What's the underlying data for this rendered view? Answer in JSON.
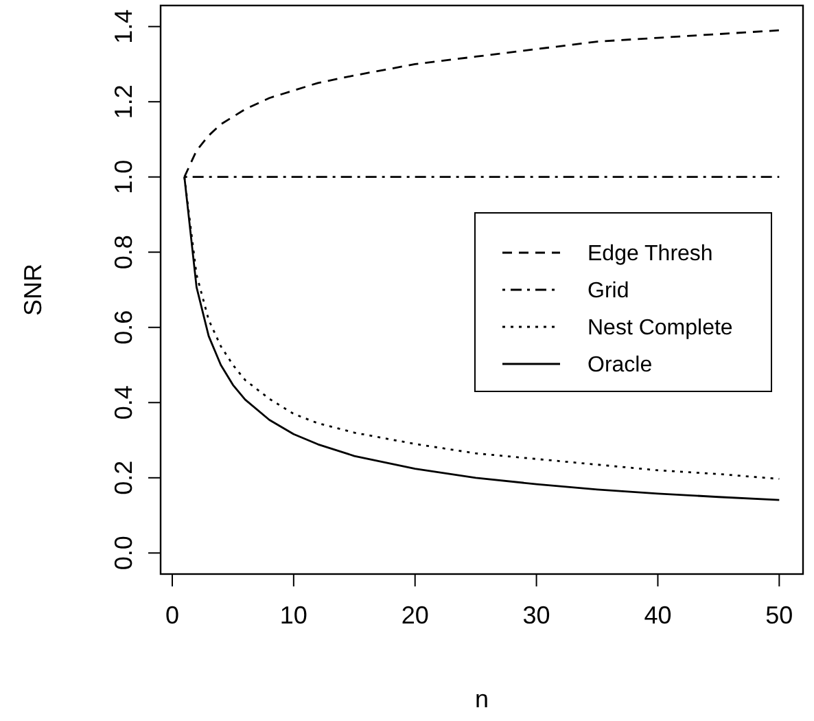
{
  "chart_data": {
    "type": "line",
    "xlabel": "n",
    "ylabel": "SNR",
    "xlim": [
      -0.96,
      51.96
    ],
    "ylim": [
      -0.056,
      1.456
    ],
    "xticks": [
      0,
      10,
      20,
      30,
      40,
      50
    ],
    "yticks": [
      {
        "value": 0,
        "label": "0.0"
      },
      0.2,
      0.4,
      0.6,
      0.8,
      {
        "value": 1,
        "label": "1.0"
      },
      1.2,
      1.4
    ],
    "grid": false,
    "legend": "right",
    "marker": "none",
    "series": [
      {
        "name": "Edge Thresh",
        "color": "#000000",
        "line_style": "dashed",
        "x": [
          1,
          2,
          3,
          4,
          5,
          6,
          8,
          10,
          12,
          15,
          20,
          25,
          30,
          35,
          40,
          45,
          50
        ],
        "values": [
          1,
          1.07,
          1.11,
          1.14,
          1.16,
          1.18,
          1.21,
          1.23,
          1.25,
          1.27,
          1.3,
          1.32,
          1.34,
          1.36,
          1.37,
          1.38,
          1.39
        ]
      },
      {
        "name": "Grid",
        "color": "#000000",
        "line_style": "dashdot",
        "x": [
          1,
          50
        ],
        "values": [
          1,
          1
        ]
      },
      {
        "name": "Nest Complete",
        "color": "#000000",
        "line_style": "dotted",
        "x": [
          1,
          2,
          3,
          4,
          5,
          6,
          8,
          10,
          12,
          15,
          20,
          25,
          30,
          35,
          40,
          45,
          50
        ],
        "values": [
          1,
          0.74,
          0.62,
          0.55,
          0.5,
          0.46,
          0.41,
          0.37,
          0.345,
          0.32,
          0.29,
          0.265,
          0.25,
          0.235,
          0.22,
          0.21,
          0.197
        ]
      },
      {
        "name": "Oracle",
        "color": "#000000",
        "line_style": "solid",
        "x": [
          1,
          2,
          3,
          4,
          5,
          6,
          8,
          10,
          12,
          15,
          20,
          25,
          30,
          35,
          40,
          45,
          50
        ],
        "values": [
          1,
          0.707,
          0.577,
          0.5,
          0.447,
          0.408,
          0.354,
          0.316,
          0.289,
          0.258,
          0.224,
          0.2,
          0.183,
          0.169,
          0.158,
          0.149,
          0.141
        ]
      }
    ]
  }
}
